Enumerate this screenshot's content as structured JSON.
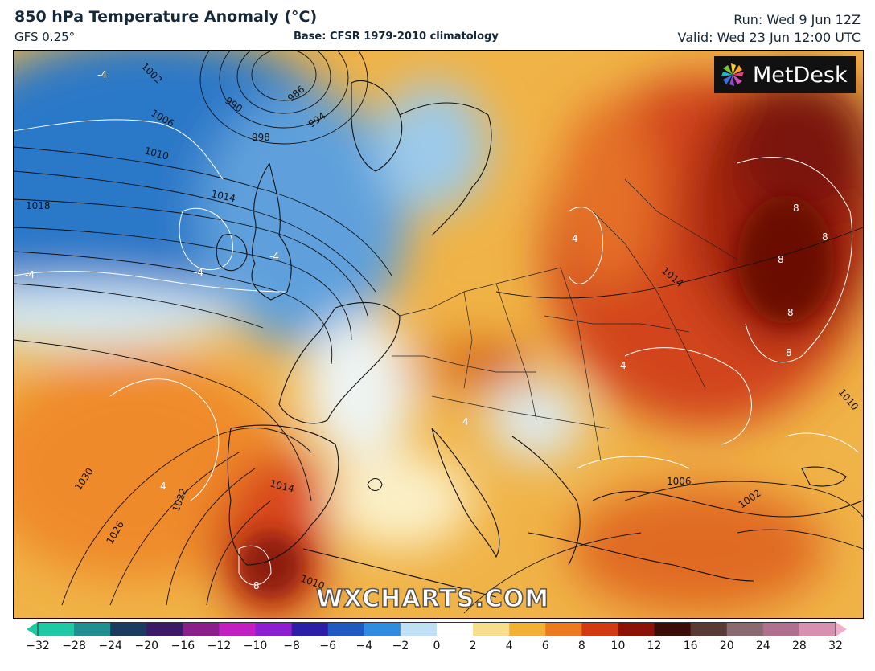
{
  "header": {
    "title": "850 hPa Temperature Anomaly (°C)",
    "model": "GFS 0.25°",
    "base": "Base: CFSR 1979-2010 climatology",
    "run": "Run: Wed 9 Jun 12Z",
    "valid": "Valid: Wed 23 Jun 12:00 UTC"
  },
  "logo": {
    "text": "MetDesk",
    "icon": "metdesk-pinwheel-icon"
  },
  "watermark": "WXCHARTS.COM",
  "isobars": [
    "990",
    "986",
    "994",
    "998",
    "1002",
    "1006",
    "1010",
    "1014",
    "1018",
    "1022",
    "1026",
    "1030",
    "1014",
    "1006",
    "1002",
    "1010",
    "1014",
    "1010"
  ],
  "anomaly_labels": [
    "-4",
    "-4",
    "-4",
    "-4",
    "4",
    "4",
    "4",
    "4",
    "8",
    "8",
    "8",
    "8",
    "8",
    "8"
  ],
  "colorbar": {
    "ticks": [
      "−32",
      "−28",
      "−24",
      "−20",
      "−16",
      "−12",
      "−10",
      "−8",
      "−6",
      "−4",
      "−2",
      "0",
      "2",
      "4",
      "6",
      "8",
      "10",
      "12",
      "16",
      "20",
      "24",
      "28",
      "32"
    ],
    "colors": [
      "#1fc9a3",
      "#1f8f8f",
      "#1a3c5e",
      "#3b1a66",
      "#8a1f8a",
      "#c21fc2",
      "#8c1fd0",
      "#2b1fa8",
      "#1f5ac2",
      "#2f8ce0",
      "#bfe0f5",
      "#ffffff",
      "#f7de8c",
      "#f2b134",
      "#ec7a1f",
      "#d23a12",
      "#8c1208",
      "#3a0d08",
      "#5a3a34",
      "#8a6a70",
      "#b07090",
      "#d890b0",
      "#f0b0cc"
    ]
  }
}
